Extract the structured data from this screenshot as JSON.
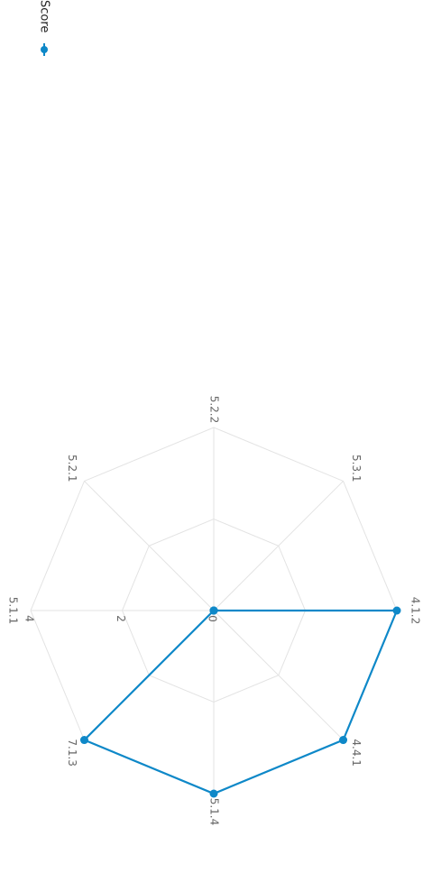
{
  "chart_data": {
    "type": "radar",
    "categories": [
      "4.1.2",
      "4.4.1",
      "5.1.4",
      "7.1.3",
      "5.1.1",
      "5.2.1",
      "5.2.2",
      "5.3.1"
    ],
    "series": [
      {
        "name": "Score",
        "color": "#0e88c8",
        "values": [
          4,
          4,
          4,
          4,
          0,
          0,
          0,
          0
        ]
      }
    ],
    "ylim": [
      0,
      4
    ],
    "yticks": [
      0,
      2,
      4
    ],
    "grid": true,
    "legend": "top-right"
  }
}
